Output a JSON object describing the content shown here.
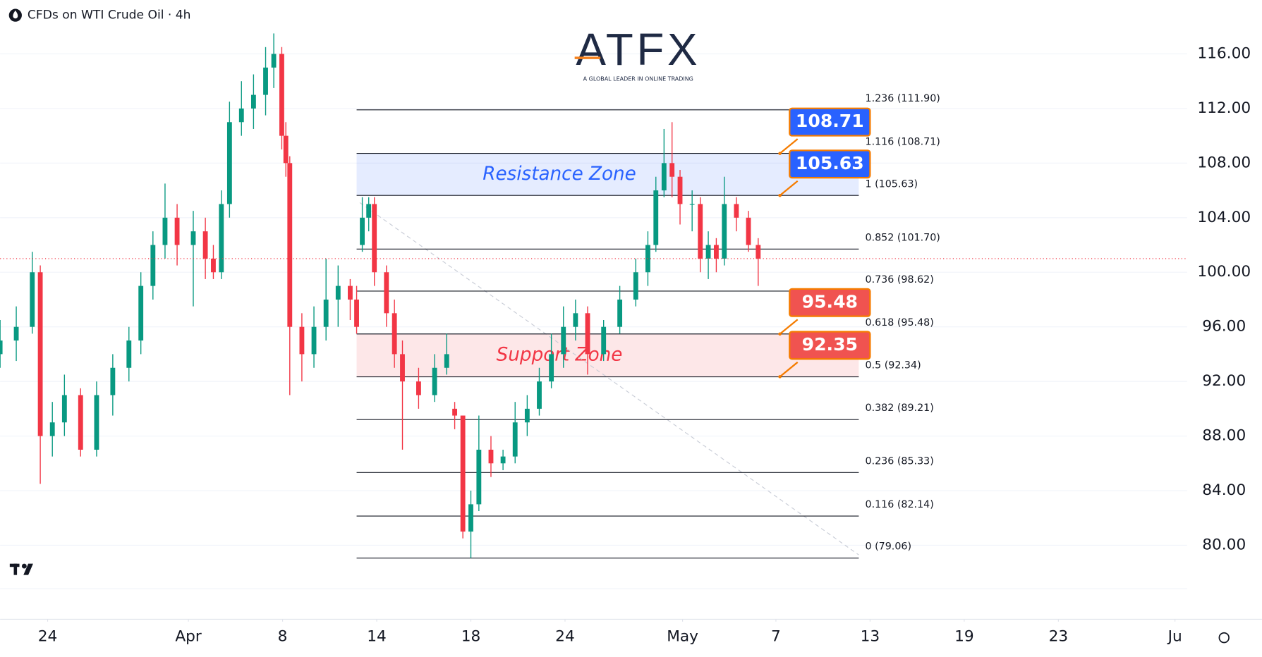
{
  "chart_data": {
    "type": "candlestick",
    "title": "CFDs on WTI Crude Oil · 4h",
    "brand": "ATFX",
    "brand_tagline": "A GLOBAL LEADER IN ONLINE TRADING",
    "up_color": "#089981",
    "down_color": "#f23645",
    "grid": true,
    "xlim": [
      0,
      75.64
    ],
    "ylim": [
      74.58,
      119.95
    ],
    "yticks": [
      {
        "value": 80,
        "label": "80.00"
      },
      {
        "value": 84,
        "label": "84.00"
      },
      {
        "value": 88,
        "label": "88.00"
      },
      {
        "value": 92,
        "label": "92.00"
      },
      {
        "value": 96,
        "label": "96.00"
      },
      {
        "value": 100,
        "label": "100.00"
      },
      {
        "value": 104,
        "label": "104.00"
      },
      {
        "value": 108,
        "label": "108.00"
      },
      {
        "value": 112,
        "label": "112.00"
      },
      {
        "value": 116,
        "label": "116.00"
      }
    ],
    "xticks": [
      {
        "value": 3.03,
        "label": "24"
      },
      {
        "value": 12.0,
        "label": "Apr"
      },
      {
        "value": 18.0,
        "label": "8"
      },
      {
        "value": 24.0,
        "label": "14"
      },
      {
        "value": 30.0,
        "label": "18"
      },
      {
        "value": 36.0,
        "label": "24"
      },
      {
        "value": 43.49,
        "label": "May"
      },
      {
        "value": 49.44,
        "label": "7"
      },
      {
        "value": 55.44,
        "label": "13"
      },
      {
        "value": 61.44,
        "label": "19"
      },
      {
        "value": 67.44,
        "label": "23"
      },
      {
        "value": 74.87,
        "label": "Ju"
      }
    ],
    "candles": [
      {
        "x": 0.0,
        "open": 94.0,
        "high": 96.5,
        "low": 93.0,
        "close": 95.0
      },
      {
        "x": 1.03,
        "open": 95.0,
        "high": 97.5,
        "low": 93.5,
        "close": 96.0
      },
      {
        "x": 2.05,
        "open": 96.0,
        "high": 101.5,
        "low": 95.5,
        "close": 100.0
      },
      {
        "x": 2.56,
        "open": 100.0,
        "high": 100.5,
        "low": 84.5,
        "close": 88.0
      },
      {
        "x": 3.33,
        "open": 88.0,
        "high": 90.5,
        "low": 86.5,
        "close": 89.0
      },
      {
        "x": 4.1,
        "open": 89.0,
        "high": 92.5,
        "low": 88.0,
        "close": 91.0
      },
      {
        "x": 5.13,
        "open": 91.0,
        "high": 91.5,
        "low": 86.5,
        "close": 87.0
      },
      {
        "x": 6.15,
        "open": 87.0,
        "high": 92.0,
        "low": 86.5,
        "close": 91.0
      },
      {
        "x": 7.18,
        "open": 91.0,
        "high": 94.0,
        "low": 89.5,
        "close": 93.0
      },
      {
        "x": 8.21,
        "open": 93.0,
        "high": 96.0,
        "low": 92.0,
        "close": 95.0
      },
      {
        "x": 8.97,
        "open": 95.0,
        "high": 100.0,
        "low": 94.0,
        "close": 99.0
      },
      {
        "x": 9.74,
        "open": 99.0,
        "high": 103.0,
        "low": 98.0,
        "close": 102.0
      },
      {
        "x": 10.51,
        "open": 102.0,
        "high": 106.5,
        "low": 101.0,
        "close": 104.0
      },
      {
        "x": 11.28,
        "open": 104.0,
        "high": 105.0,
        "low": 100.5,
        "close": 102.0
      },
      {
        "x": 12.31,
        "open": 102.0,
        "high": 104.5,
        "low": 97.5,
        "close": 103.0
      },
      {
        "x": 13.08,
        "open": 103.0,
        "high": 104.0,
        "low": 99.5,
        "close": 101.0
      },
      {
        "x": 13.59,
        "open": 101.0,
        "high": 102.0,
        "low": 99.5,
        "close": 100.0
      },
      {
        "x": 14.1,
        "open": 100.0,
        "high": 106.0,
        "low": 99.5,
        "close": 105.0
      },
      {
        "x": 14.62,
        "open": 105.0,
        "high": 112.5,
        "low": 104.0,
        "close": 111.0
      },
      {
        "x": 15.38,
        "open": 111.0,
        "high": 114.0,
        "low": 110.0,
        "close": 112.0
      },
      {
        "x": 16.15,
        "open": 112.0,
        "high": 114.5,
        "low": 110.5,
        "close": 113.0
      },
      {
        "x": 16.92,
        "open": 113.0,
        "high": 116.5,
        "low": 111.5,
        "close": 115.0
      },
      {
        "x": 17.44,
        "open": 115.0,
        "high": 117.5,
        "low": 113.5,
        "close": 116.0
      },
      {
        "x": 17.95,
        "open": 116.0,
        "high": 116.5,
        "low": 109.0,
        "close": 110.0
      },
      {
        "x": 18.21,
        "open": 110.0,
        "high": 111.0,
        "low": 107.0,
        "close": 108.0
      },
      {
        "x": 18.46,
        "open": 108.0,
        "high": 108.5,
        "low": 91.0,
        "close": 96.0
      },
      {
        "x": 19.23,
        "open": 96.0,
        "high": 97.0,
        "low": 92.0,
        "close": 94.0
      },
      {
        "x": 20.0,
        "open": 94.0,
        "high": 97.5,
        "low": 93.0,
        "close": 96.0
      },
      {
        "x": 20.77,
        "open": 96.0,
        "high": 101.0,
        "low": 95.0,
        "close": 98.0
      },
      {
        "x": 21.54,
        "open": 98.0,
        "high": 100.5,
        "low": 96.0,
        "close": 99.0
      },
      {
        "x": 22.31,
        "open": 99.0,
        "high": 99.5,
        "low": 96.5,
        "close": 98.0
      },
      {
        "x": 22.72,
        "open": 98.0,
        "high": 99.0,
        "low": 95.5,
        "close": 96.0
      },
      {
        "x": 23.08,
        "open": 102.0,
        "high": 105.5,
        "low": 101.5,
        "close": 104.0
      },
      {
        "x": 23.49,
        "open": 104.0,
        "high": 105.5,
        "low": 103.0,
        "close": 105.0
      },
      {
        "x": 23.85,
        "open": 105.0,
        "high": 105.5,
        "low": 99.0,
        "close": 100.0
      },
      {
        "x": 24.62,
        "open": 100.0,
        "high": 100.5,
        "low": 96.0,
        "close": 97.0
      },
      {
        "x": 25.13,
        "open": 97.0,
        "high": 98.0,
        "low": 93.0,
        "close": 94.0
      },
      {
        "x": 25.64,
        "open": 94.0,
        "high": 95.0,
        "low": 87.0,
        "close": 92.0
      },
      {
        "x": 26.67,
        "open": 92.0,
        "high": 93.0,
        "low": 90.0,
        "close": 91.0
      },
      {
        "x": 27.69,
        "open": 91.0,
        "high": 94.0,
        "low": 90.5,
        "close": 93.0
      },
      {
        "x": 28.46,
        "open": 93.0,
        "high": 95.5,
        "low": 92.5,
        "close": 94.0
      },
      {
        "x": 28.97,
        "open": 90.0,
        "high": 90.5,
        "low": 88.5,
        "close": 89.5
      },
      {
        "x": 29.49,
        "open": 89.5,
        "high": 89.5,
        "low": 80.5,
        "close": 81.0
      },
      {
        "x": 30.0,
        "open": 81.0,
        "high": 84.0,
        "low": 79.06,
        "close": 83.0
      },
      {
        "x": 30.51,
        "open": 83.0,
        "high": 89.5,
        "low": 82.5,
        "close": 87.0
      },
      {
        "x": 31.28,
        "open": 87.0,
        "high": 88.0,
        "low": 85.0,
        "close": 86.0
      },
      {
        "x": 32.05,
        "open": 86.0,
        "high": 87.0,
        "low": 85.5,
        "close": 86.5
      },
      {
        "x": 32.82,
        "open": 86.5,
        "high": 90.5,
        "low": 86.0,
        "close": 89.0
      },
      {
        "x": 33.59,
        "open": 89.0,
        "high": 91.0,
        "low": 88.0,
        "close": 90.0
      },
      {
        "x": 34.36,
        "open": 90.0,
        "high": 93.0,
        "low": 89.5,
        "close": 92.0
      },
      {
        "x": 35.13,
        "open": 92.0,
        "high": 95.5,
        "low": 91.5,
        "close": 94.0
      },
      {
        "x": 35.9,
        "open": 94.0,
        "high": 97.5,
        "low": 93.0,
        "close": 96.0
      },
      {
        "x": 36.67,
        "open": 96.0,
        "high": 98.0,
        "low": 95.0,
        "close": 97.0
      },
      {
        "x": 37.44,
        "open": 97.0,
        "high": 97.5,
        "low": 92.5,
        "close": 94.0
      },
      {
        "x": 38.46,
        "open": 94.0,
        "high": 96.5,
        "low": 93.5,
        "close": 96.0
      },
      {
        "x": 39.49,
        "open": 96.0,
        "high": 99.0,
        "low": 95.5,
        "close": 98.0
      },
      {
        "x": 40.51,
        "open": 98.0,
        "high": 101.0,
        "low": 97.5,
        "close": 100.0
      },
      {
        "x": 41.28,
        "open": 100.0,
        "high": 103.0,
        "low": 99.0,
        "close": 102.0
      },
      {
        "x": 41.79,
        "open": 102.0,
        "high": 107.0,
        "low": 101.5,
        "close": 106.0
      },
      {
        "x": 42.31,
        "open": 106.0,
        "high": 110.5,
        "low": 105.5,
        "close": 108.0
      },
      {
        "x": 42.82,
        "open": 108.0,
        "high": 111.0,
        "low": 105.5,
        "close": 107.0
      },
      {
        "x": 43.33,
        "open": 107.0,
        "high": 107.5,
        "low": 103.5,
        "close": 105.0
      },
      {
        "x": 44.1,
        "open": 105.0,
        "high": 106.0,
        "low": 103.0,
        "close": 105.0
      },
      {
        "x": 44.62,
        "open": 105.0,
        "high": 105.5,
        "low": 100.0,
        "close": 101.0
      },
      {
        "x": 45.13,
        "open": 101.0,
        "high": 103.0,
        "low": 99.5,
        "close": 102.0
      },
      {
        "x": 45.64,
        "open": 102.0,
        "high": 102.5,
        "low": 100.0,
        "close": 101.0
      },
      {
        "x": 46.15,
        "open": 101.0,
        "high": 107.0,
        "low": 100.5,
        "close": 105.0
      },
      {
        "x": 46.92,
        "open": 105.0,
        "high": 105.5,
        "low": 103.0,
        "close": 104.0
      },
      {
        "x": 47.69,
        "open": 104.0,
        "high": 104.5,
        "low": 101.5,
        "close": 102.0
      },
      {
        "x": 48.31,
        "open": 102.0,
        "high": 102.5,
        "low": 99.0,
        "close": 101.0
      }
    ],
    "fib_x": [
      22.72,
      54.72
    ],
    "fib_levels": [
      {
        "value": 111.9,
        "label": "1.236 (111.90)"
      },
      {
        "value": 108.71,
        "label": "1.116 (108.71)"
      },
      {
        "value": 105.63,
        "label": "1 (105.63)"
      },
      {
        "value": 101.7,
        "label": "0.852 (101.70)"
      },
      {
        "value": 98.62,
        "label": "0.736 (98.62)"
      },
      {
        "value": 95.48,
        "label": "0.618 (95.48)"
      },
      {
        "value": 92.34,
        "label": "0.5 (92.34)"
      },
      {
        "value": 89.21,
        "label": "0.382 (89.21)"
      },
      {
        "value": 85.33,
        "label": "0.236 (85.33)"
      },
      {
        "value": 82.14,
        "label": "0.116 (82.14)"
      },
      {
        "value": 79.06,
        "label": "0 (79.06)"
      }
    ],
    "zones": [
      {
        "name": "Resistance Zone",
        "low": 105.63,
        "high": 108.71,
        "color": "#2962ff"
      },
      {
        "name": "Support Zone",
        "low": 92.34,
        "high": 95.48,
        "color": "#f23645"
      }
    ],
    "price_tags": [
      {
        "value": 108.71,
        "color": "#2962ff"
      },
      {
        "value": 105.63,
        "color": "#2962ff"
      },
      {
        "value": 95.48,
        "color": "#f05350"
      },
      {
        "value": 92.35,
        "color": "#f05350"
      }
    ]
  }
}
